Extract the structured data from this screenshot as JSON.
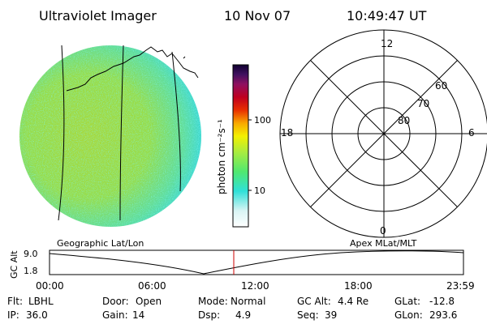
{
  "header": {
    "instrument": "Ultraviolet Imager",
    "date": "10 Nov 07",
    "time": "10:49:47 UT"
  },
  "colorbar": {
    "unit_label": "photon cm⁻²s⁻¹",
    "ticks": [
      "100",
      "10"
    ]
  },
  "polar_plot": {
    "mlt_labels": [
      "12",
      "18",
      "6",
      "0"
    ],
    "mlat_labels": [
      "60",
      "70",
      "80"
    ]
  },
  "orbit_strip": {
    "left_title": "Geographic Lat/Lon",
    "right_title": "Apex MLat/MLT",
    "axis_label": "GC Alt",
    "y_ticks": [
      "9.0",
      "1.8"
    ],
    "x_ticks": [
      "00:00",
      "06:00",
      "12:00",
      "18:00",
      "23:59"
    ]
  },
  "status": {
    "row1": [
      {
        "key": "Flt:",
        "value": "LBHL"
      },
      {
        "key": "Door:",
        "value": "Open"
      },
      {
        "key": "Mode:",
        "value": "Normal"
      },
      {
        "key": "GC Alt:",
        "value": "4.4 Re"
      },
      {
        "key": "GLat:",
        "value": "-12.8"
      }
    ],
    "row2": [
      {
        "key": "IP:",
        "value": "36.0"
      },
      {
        "key": "Gain:",
        "value": "14"
      },
      {
        "key": "Dsp:",
        "value": "4.9"
      },
      {
        "key": "Seq:",
        "value": "39"
      },
      {
        "key": "GLon:",
        "value": "293.6"
      }
    ]
  },
  "colors": {
    "marker": "#cc0000"
  }
}
